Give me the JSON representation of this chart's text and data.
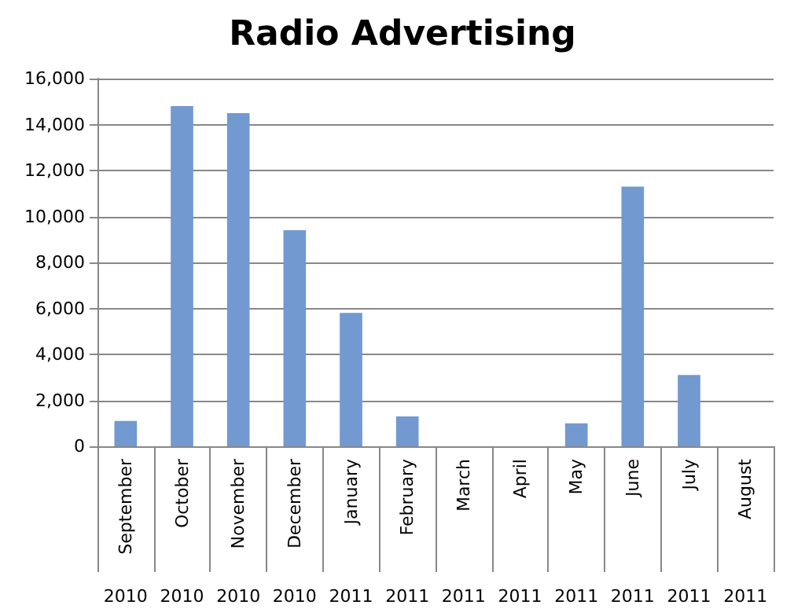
{
  "chart_data": {
    "type": "bar",
    "title": "Radio Advertising",
    "categories": [
      "September 2010",
      "October 2010",
      "November 2010",
      "December 2010",
      "January 2011",
      "February 2011",
      "March 2011",
      "April 2011",
      "May 2011",
      "June 2011",
      "July 2011",
      "August 2011"
    ],
    "values": [
      1100,
      14800,
      14500,
      9400,
      5800,
      1300,
      0,
      0,
      1000,
      11300,
      3100,
      0
    ],
    "color": "#7299d0",
    "ylim": [
      0,
      16000
    ],
    "yticks": [
      0,
      {
        "value": 2000,
        "label": "2,000"
      },
      {
        "value": 4000,
        "label": "4,000"
      },
      {
        "value": 6000,
        "label": "6,000"
      },
      {
        "value": 8000,
        "label": "8,000"
      },
      {
        "value": 10000,
        "label": "10,000"
      },
      {
        "value": 12000,
        "label": "12,000"
      },
      {
        "value": 14000,
        "label": "14,000"
      },
      {
        "value": 16000,
        "label": "16,000"
      }
    ],
    "grid": "y"
  }
}
